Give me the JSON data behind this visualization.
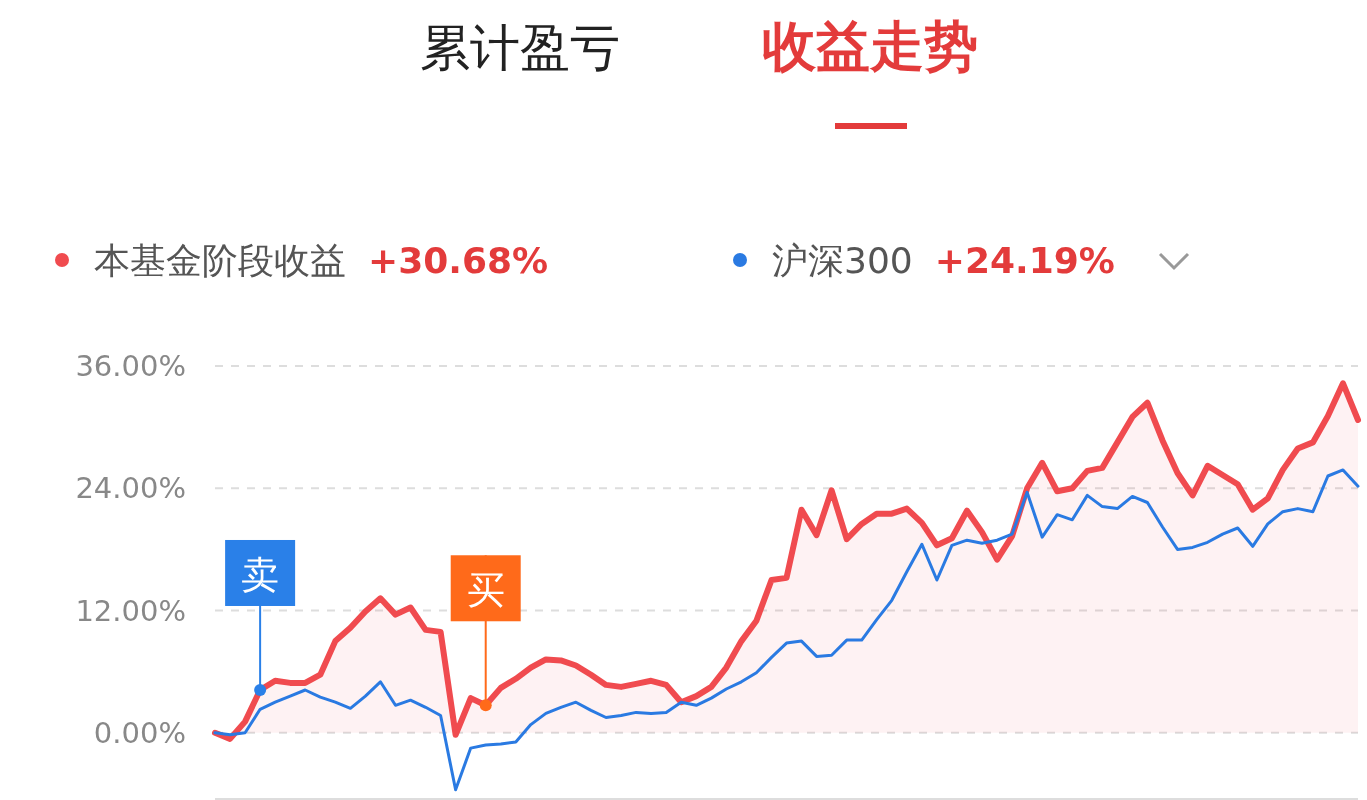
{
  "chart_data": {
    "type": "line",
    "title": "收益走势",
    "subtitle": "累计盈亏",
    "categories": [
      null,
      null,
      null,
      null,
      null,
      null,
      null,
      null,
      null,
      null,
      null,
      null,
      null,
      null,
      null,
      null,
      null,
      null,
      null,
      null,
      null,
      null,
      null,
      null,
      null,
      null,
      null,
      null,
      null,
      null,
      null,
      null,
      null,
      null,
      null,
      null,
      null,
      null,
      null,
      null,
      null,
      null,
      null,
      null,
      null,
      null,
      null,
      null,
      null,
      null,
      null,
      null,
      null,
      null,
      null,
      null,
      null,
      null,
      null,
      null,
      null,
      null,
      null,
      null,
      null,
      null,
      null,
      null,
      null,
      null,
      null,
      null,
      null,
      null,
      null,
      null,
      null
    ],
    "ylim": [
      -6.5,
      36
    ],
    "yticks": [
      {
        "value": 0,
        "label": "0.00%"
      },
      {
        "value": 12,
        "label": "12.00%"
      },
      {
        "value": 24,
        "label": "24.00%"
      },
      {
        "value": 36,
        "label": "36.00%"
      }
    ],
    "tick_labels": "y",
    "grid": "y",
    "legend": "top left",
    "line_style": "solid",
    "marker": "none",
    "series": [
      {
        "name": "本基金阶段收益",
        "type": "area",
        "color": "#f04b4f",
        "values": [
          0,
          -0.6,
          1.1,
          4.2,
          5.1,
          4.9,
          4.9,
          5.7,
          9.0,
          10.3,
          11.9,
          13.2,
          11.6,
          12.3,
          10.1,
          9.9,
          -0.2,
          3.4,
          2.7,
          4.4,
          5.3,
          6.4,
          7.2,
          7.1,
          6.6,
          5.7,
          4.7,
          4.5,
          4.8,
          5.1,
          4.7,
          3.0,
          3.6,
          4.5,
          6.4,
          9.0,
          11.0,
          15.0,
          15.2,
          21.9,
          19.4,
          23.8,
          19.0,
          20.5,
          21.5,
          21.5,
          22.0,
          20.6,
          18.4,
          19.1,
          21.8,
          19.7,
          17.0,
          19.3,
          24.0,
          26.5,
          23.7,
          24.0,
          25.7,
          26.0,
          28.5,
          31.0,
          32.4,
          28.7,
          25.5,
          23.3,
          26.2,
          25.3,
          24.4,
          21.9,
          23.0,
          25.8,
          27.9,
          28.5,
          31.1,
          34.3,
          30.7
        ]
      },
      {
        "name": "沪深300",
        "color": "#2a7ae2",
        "values": [
          0,
          -0.2,
          0,
          2.3,
          3.0,
          3.6,
          4.2,
          3.5,
          3.0,
          2.4,
          3.6,
          5.0,
          2.7,
          3.2,
          2.5,
          1.7,
          -5.6,
          -1.5,
          -1.2,
          -1.1,
          -0.9,
          0.8,
          1.9,
          2.5,
          3.0,
          2.2,
          1.5,
          1.7,
          2.0,
          1.9,
          2.0,
          3.0,
          2.7,
          3.4,
          4.3,
          5.0,
          5.9,
          7.4,
          8.8,
          9.0,
          7.5,
          7.6,
          9.1,
          9.1,
          11.1,
          13.0,
          15.8,
          18.5,
          15.0,
          18.4,
          18.9,
          18.6,
          18.9,
          19.5,
          23.6,
          19.2,
          21.4,
          20.9,
          23.3,
          22.2,
          22.0,
          23.2,
          22.6,
          20.2,
          18.0,
          18.2,
          18.7,
          19.5,
          20.1,
          18.3,
          20.5,
          21.7,
          22.0,
          21.7,
          25.2,
          25.8,
          24.2
        ]
      }
    ],
    "annotations": [
      "+30.68%",
      "+24.19%",
      {
        "text": "卖",
        "y": 4.2
      },
      {
        "text": "买",
        "y": 2.7
      }
    ]
  }
}
